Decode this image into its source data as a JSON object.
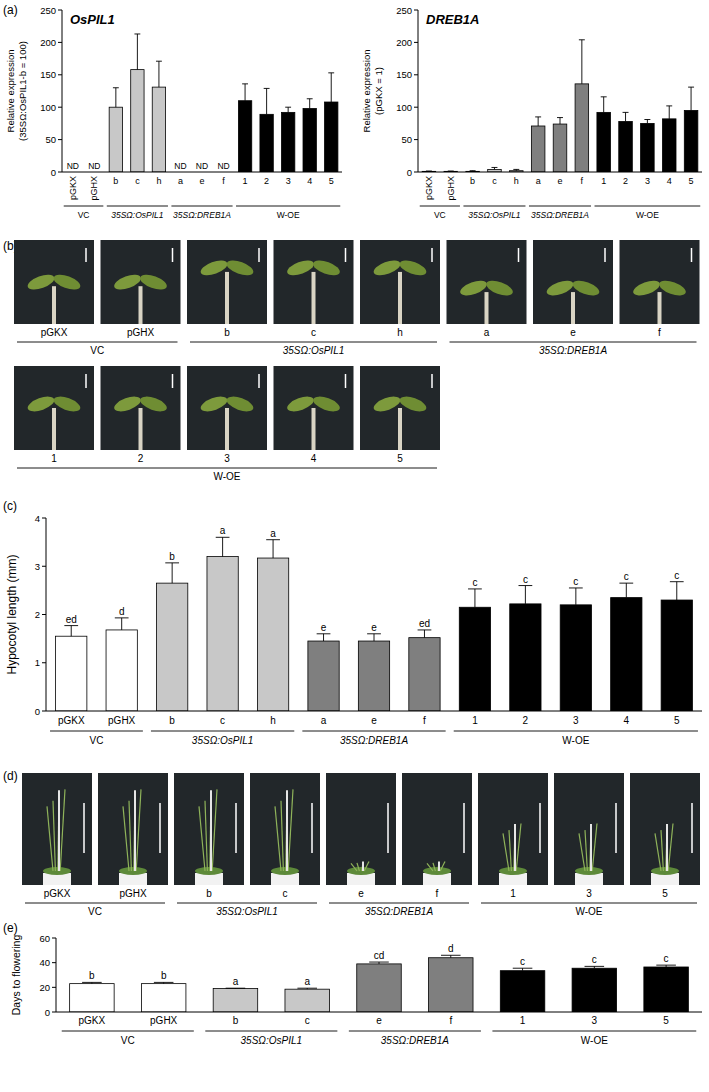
{
  "chart_data": [
    {
      "type": "bar",
      "title": "OsPIL1",
      "annotations": [
        "(a)"
      ],
      "y_label": [
        "Relative expression",
        "(35SΩ:OsPIL1-b = 100)"
      ],
      "categories": [
        "pGKX",
        "pGHX",
        "b",
        "c",
        "h",
        "a",
        "e",
        "f",
        "1",
        "2",
        "3",
        "4",
        "5"
      ],
      "values": [
        null,
        null,
        100,
        158,
        131,
        null,
        null,
        null,
        110,
        89,
        92,
        98,
        108
      ],
      "errors": [
        null,
        null,
        30,
        55,
        40,
        null,
        null,
        null,
        26,
        40,
        8,
        15,
        45
      ],
      "value_labels": [
        "ND",
        "ND",
        null,
        null,
        null,
        "ND",
        "ND",
        "ND",
        null,
        null,
        null,
        null,
        null
      ],
      "colors": [
        "#ffffff",
        "#ffffff",
        "#c8c8c8",
        "#c8c8c8",
        "#c8c8c8",
        "#7f7f7f",
        "#7f7f7f",
        "#7f7f7f",
        "#000000",
        "#000000",
        "#000000",
        "#000000",
        "#000000"
      ],
      "groups": [
        {
          "label": "VC",
          "count": 2
        },
        {
          "label": "35SΩ:OsPIL1",
          "count": 3
        },
        {
          "label": "35SΩ:DREB1A",
          "count": 3
        },
        {
          "label": "W-OE",
          "count": 5
        }
      ],
      "ylim": [
        0,
        250
      ],
      "yticks": [
        0,
        50,
        100,
        150,
        200,
        250
      ]
    },
    {
      "type": "bar",
      "title": "DREB1A",
      "y_label": [
        "Relative expression",
        "(pGKX = 1)"
      ],
      "categories": [
        "pGKX",
        "pGHX",
        "b",
        "c",
        "h",
        "a",
        "e",
        "f",
        "1",
        "2",
        "3",
        "4",
        "5"
      ],
      "values": [
        1,
        1,
        1,
        4,
        2,
        71,
        74,
        136,
        92,
        78,
        75,
        82,
        95
      ],
      "errors": [
        0.5,
        0.5,
        1,
        3,
        2,
        14,
        10,
        68,
        24,
        14,
        6,
        20,
        36
      ],
      "colors": [
        "#ffffff",
        "#ffffff",
        "#c8c8c8",
        "#c8c8c8",
        "#c8c8c8",
        "#7f7f7f",
        "#7f7f7f",
        "#7f7f7f",
        "#000000",
        "#000000",
        "#000000",
        "#000000",
        "#000000"
      ],
      "groups": [
        {
          "label": "VC",
          "count": 2
        },
        {
          "label": "35SΩ:OsPIL1",
          "count": 3
        },
        {
          "label": "35SΩ:DREB1A",
          "count": 3
        },
        {
          "label": "W-OE",
          "count": 5
        }
      ],
      "ylim": [
        0,
        250
      ],
      "yticks": [
        0,
        50,
        100,
        150,
        200,
        250
      ]
    },
    {
      "type": "bar",
      "annotations": [
        "(c)"
      ],
      "y_label": [
        "Hypocotyl length (mm)"
      ],
      "categories": [
        "pGKX",
        "pGHX",
        "b",
        "c",
        "h",
        "a",
        "e",
        "f",
        "1",
        "2",
        "3",
        "4",
        "5"
      ],
      "values": [
        1.55,
        1.68,
        2.65,
        3.2,
        3.17,
        1.45,
        1.45,
        1.52,
        2.15,
        2.22,
        2.2,
        2.35,
        2.3
      ],
      "errors": [
        0.22,
        0.25,
        0.42,
        0.4,
        0.38,
        0.15,
        0.15,
        0.16,
        0.38,
        0.38,
        0.35,
        0.3,
        0.38
      ],
      "letters": [
        "ed",
        "d",
        "b",
        "a",
        "a",
        "e",
        "e",
        "ed",
        "c",
        "c",
        "c",
        "c",
        "c"
      ],
      "colors": [
        "#ffffff",
        "#ffffff",
        "#c8c8c8",
        "#c8c8c8",
        "#c8c8c8",
        "#7f7f7f",
        "#7f7f7f",
        "#7f7f7f",
        "#000000",
        "#000000",
        "#000000",
        "#000000",
        "#000000"
      ],
      "groups": [
        {
          "label": "VC",
          "count": 2
        },
        {
          "label": "35SΩ:OsPIL1",
          "count": 3
        },
        {
          "label": "35SΩ:DREB1A",
          "count": 3
        },
        {
          "label": "W-OE",
          "count": 5
        }
      ],
      "ylim": [
        0,
        4
      ],
      "yticks": [
        0,
        1,
        2,
        3,
        4
      ]
    },
    {
      "type": "bar",
      "annotations": [
        "(e)"
      ],
      "y_label": [
        "Days to flowering"
      ],
      "categories": [
        "pGKX",
        "pGHX",
        "b",
        "c",
        "e",
        "f",
        "1",
        "3",
        "5"
      ],
      "values": [
        23,
        23,
        19,
        18.5,
        39,
        44,
        33.5,
        35.5,
        36.5
      ],
      "errors": [
        1,
        1,
        0.3,
        0.8,
        1.5,
        2,
        2,
        1.5,
        1.5
      ],
      "letters": [
        "b",
        "b",
        "a",
        "a",
        "cd",
        "d",
        "c",
        "c",
        "c"
      ],
      "colors": [
        "#ffffff",
        "#ffffff",
        "#c8c8c8",
        "#c8c8c8",
        "#7f7f7f",
        "#7f7f7f",
        "#000000",
        "#000000",
        "#000000"
      ],
      "groups": [
        {
          "label": "VC",
          "count": 2
        },
        {
          "label": "35SΩ:OsPIL1",
          "count": 2
        },
        {
          "label": "35SΩ:DREB1A",
          "count": 2
        },
        {
          "label": "W-OE",
          "count": 3
        }
      ],
      "ylim": [
        0,
        60
      ],
      "yticks": [
        0,
        20,
        40,
        60
      ]
    }
  ],
  "photo_panels": [
    {
      "label": "(b)",
      "items": [
        "pGKX",
        "pGHX",
        "b",
        "c",
        "h",
        "a",
        "e",
        "f",
        "1",
        "2",
        "3",
        "4",
        "5"
      ],
      "groups": [
        {
          "label": "VC",
          "count": 2
        },
        {
          "label": "35SΩ:OsPIL1",
          "count": 3
        },
        {
          "label": "35SΩ:DREB1A",
          "count": 3
        },
        {
          "label": "W-OE",
          "count": 5
        }
      ]
    },
    {
      "label": "(d)",
      "items": [
        "pGKX",
        "pGHX",
        "b",
        "c",
        "e",
        "f",
        "1",
        "3",
        "5"
      ],
      "groups": [
        {
          "label": "VC",
          "count": 2
        },
        {
          "label": "35SΩ:OsPIL1",
          "count": 2
        },
        {
          "label": "35SΩ:DREB1A",
          "count": 2
        },
        {
          "label": "W-OE",
          "count": 3
        }
      ]
    }
  ]
}
